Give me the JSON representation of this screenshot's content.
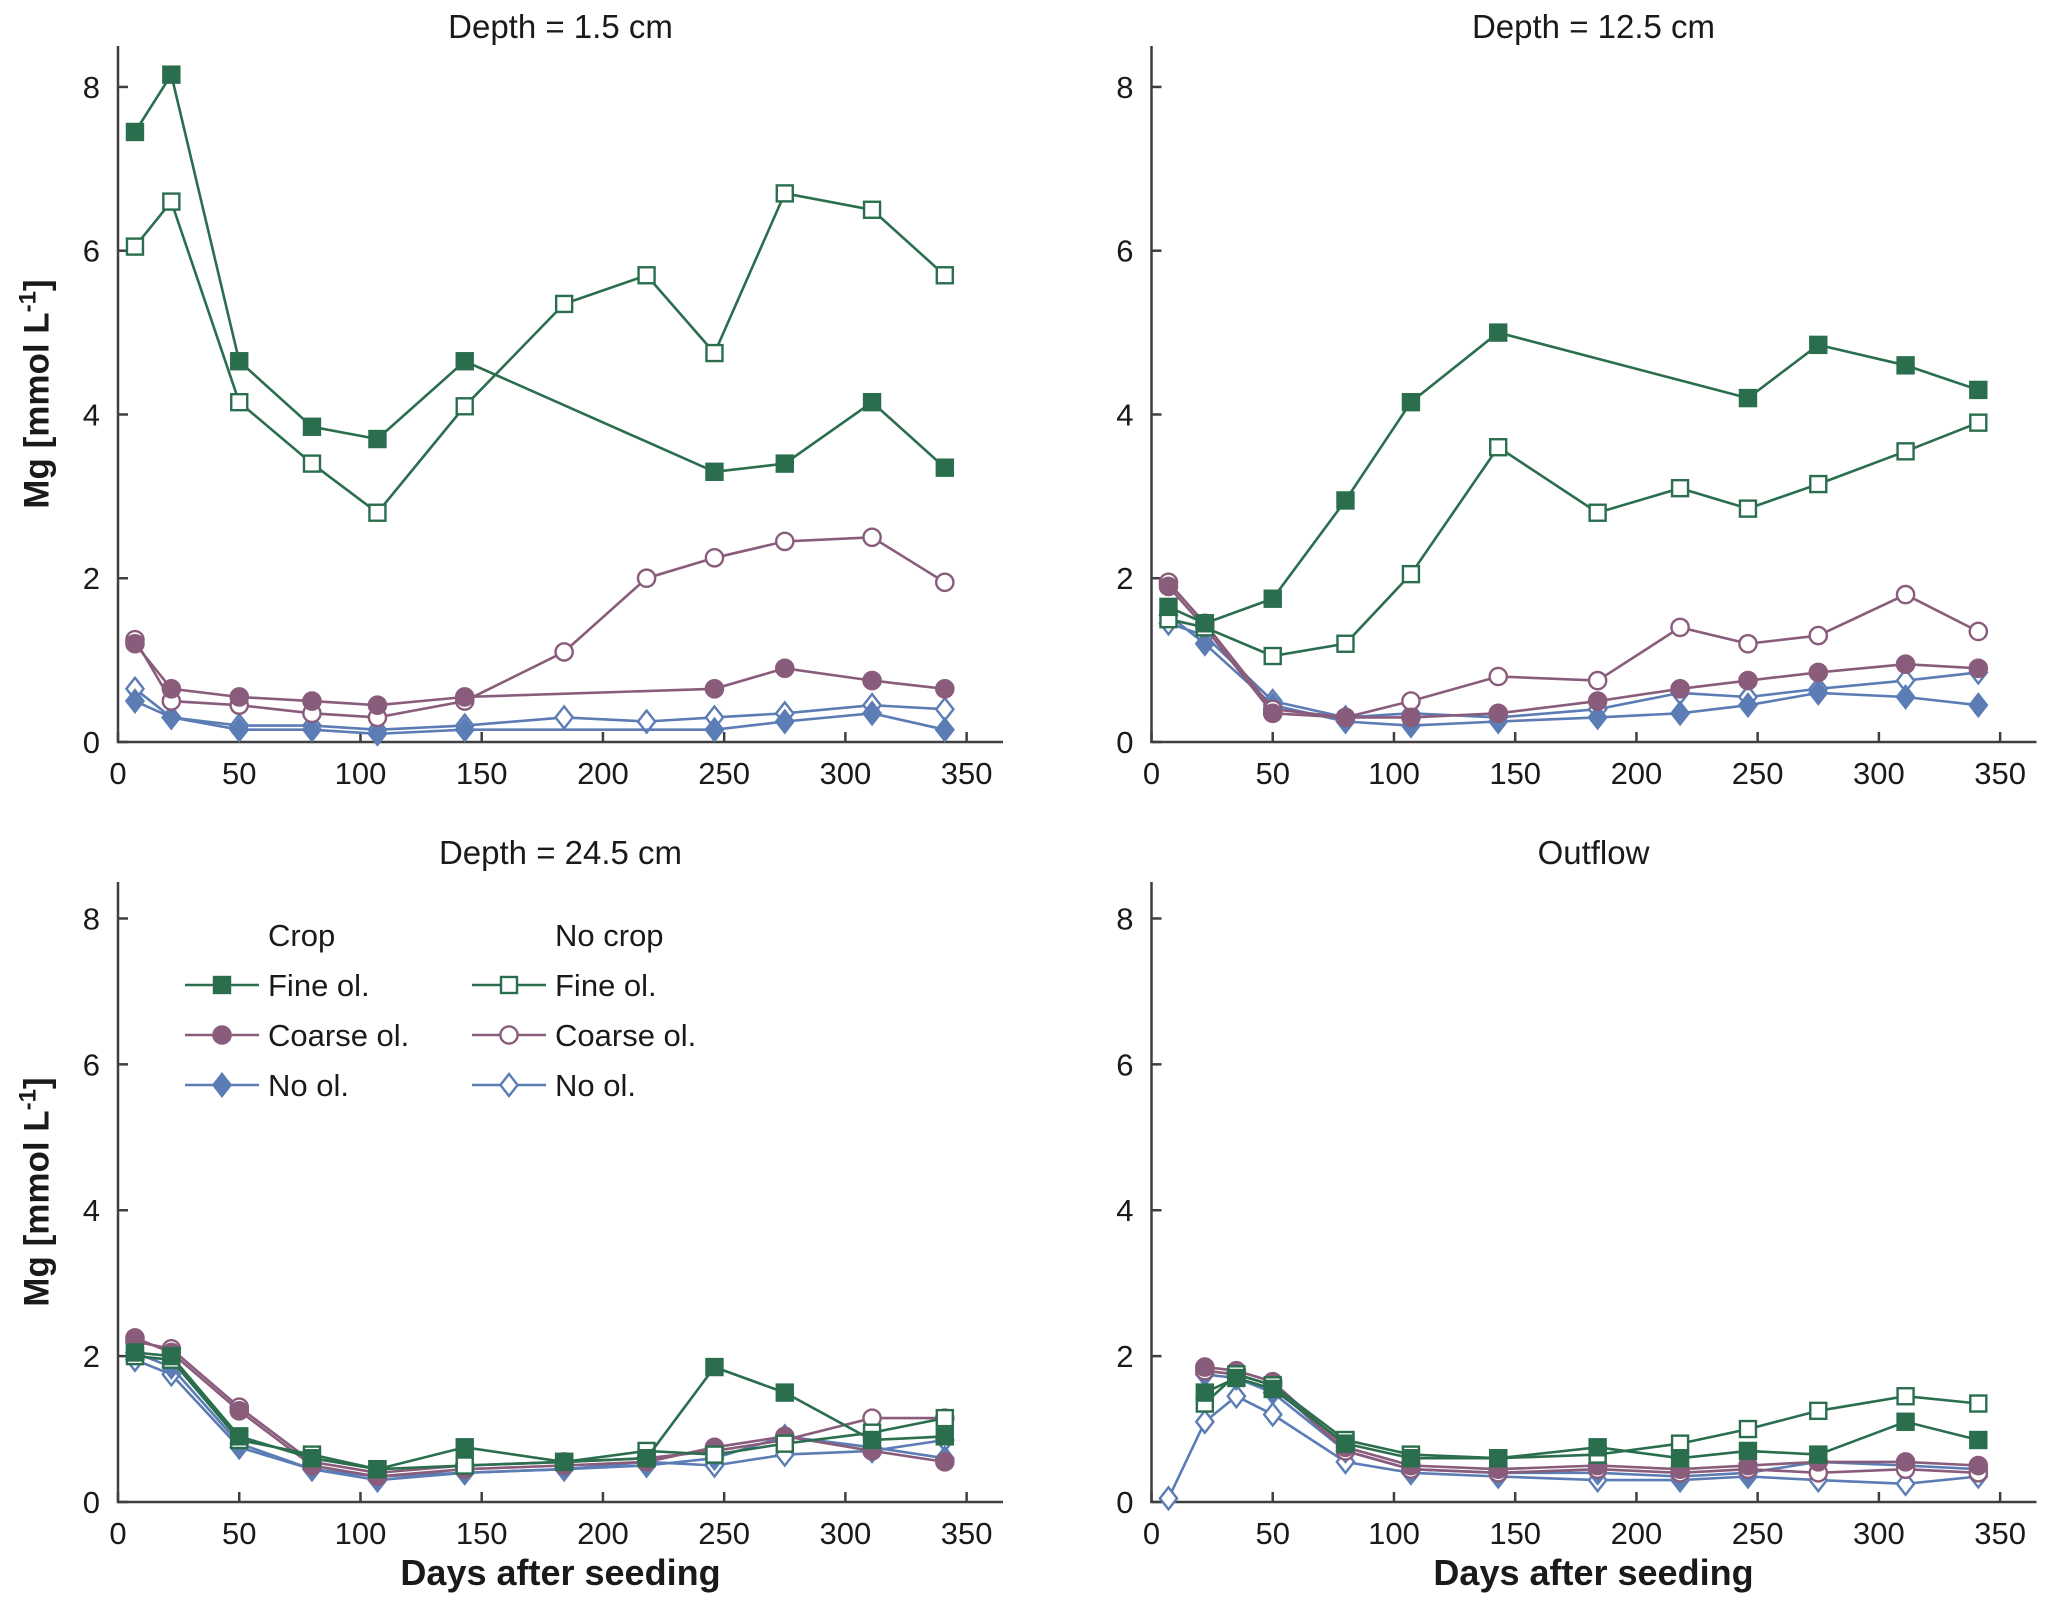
{
  "figure": {
    "xlabel": "Days after seeding",
    "ylabel": {
      "text": "Mg [mmol L",
      "sup": "-1",
      "close": "]"
    }
  },
  "palette": {
    "fine": "#2a6e4e",
    "coarse": "#8a5c7c",
    "no": "#5b7cb4",
    "axis": "#3f3f3f",
    "text": "#1a1a1a"
  },
  "axes": {
    "xlim": [
      0,
      365
    ],
    "ylim": [
      0,
      8.5
    ],
    "xticks": [
      0,
      50,
      100,
      150,
      200,
      250,
      300,
      350
    ],
    "yticks": [
      0,
      2,
      4,
      6,
      8
    ]
  },
  "legend": {
    "columns": [
      {
        "header": "Crop",
        "filled": true
      },
      {
        "header": "No crop",
        "filled": false
      }
    ],
    "rows": [
      {
        "label": "Fine ol.",
        "key": "fine",
        "marker": "square"
      },
      {
        "label": "Coarse ol.",
        "key": "coarse",
        "marker": "circle"
      },
      {
        "label": "No ol.",
        "key": "no",
        "marker": "diamond"
      }
    ]
  },
  "chart_data": [
    {
      "type": "line",
      "title": "Depth = 1.5 cm",
      "series": [
        {
          "name": "No crop - No ol.",
          "group": "nocrop",
          "olivine": "no",
          "marker": "diamond",
          "filled": false,
          "x": [
            7,
            22,
            50,
            80,
            107,
            143,
            184,
            218,
            246,
            275,
            311,
            341
          ],
          "y": [
            0.65,
            0.3,
            0.2,
            0.2,
            0.15,
            0.2,
            0.3,
            0.25,
            0.3,
            0.35,
            0.45,
            0.4
          ]
        },
        {
          "name": "Crop - No ol.",
          "group": "crop",
          "olivine": "no",
          "marker": "diamond",
          "filled": true,
          "x": [
            7,
            22,
            50,
            80,
            107,
            143,
            246,
            275,
            311,
            341
          ],
          "y": [
            0.5,
            0.3,
            0.15,
            0.15,
            0.1,
            0.15,
            0.15,
            0.25,
            0.35,
            0.15
          ]
        },
        {
          "name": "No crop - Coarse ol.",
          "group": "nocrop",
          "olivine": "coarse",
          "marker": "circle",
          "filled": false,
          "x": [
            7,
            22,
            50,
            80,
            107,
            143,
            184,
            218,
            246,
            275,
            311,
            341
          ],
          "y": [
            1.25,
            0.5,
            0.45,
            0.35,
            0.3,
            0.5,
            1.1,
            2.0,
            2.25,
            2.45,
            2.5,
            1.95
          ]
        },
        {
          "name": "Crop - Coarse ol.",
          "group": "crop",
          "olivine": "coarse",
          "marker": "circle",
          "filled": true,
          "x": [
            7,
            22,
            50,
            80,
            107,
            143,
            246,
            275,
            311,
            341
          ],
          "y": [
            1.2,
            0.65,
            0.55,
            0.5,
            0.45,
            0.55,
            0.65,
            0.9,
            0.75,
            0.65
          ]
        },
        {
          "name": "No crop - Fine ol.",
          "group": "nocrop",
          "olivine": "fine",
          "marker": "square",
          "filled": false,
          "x": [
            7,
            22,
            50,
            80,
            107,
            143,
            184,
            218,
            246,
            275,
            311,
            341
          ],
          "y": [
            6.05,
            6.6,
            4.15,
            3.4,
            2.8,
            4.1,
            5.35,
            5.7,
            4.75,
            6.7,
            6.5,
            5.7
          ]
        },
        {
          "name": "Crop - Fine ol.",
          "group": "crop",
          "olivine": "fine",
          "marker": "square",
          "filled": true,
          "x": [
            7,
            22,
            50,
            80,
            107,
            143,
            246,
            275,
            311,
            341
          ],
          "y": [
            7.45,
            8.15,
            4.65,
            3.85,
            3.7,
            4.65,
            3.3,
            3.4,
            4.15,
            3.35
          ]
        }
      ]
    },
    {
      "type": "line",
      "title": "Depth = 12.5 cm",
      "series": [
        {
          "name": "No crop - No ol.",
          "group": "nocrop",
          "olivine": "no",
          "marker": "diamond",
          "filled": false,
          "x": [
            7,
            22,
            50,
            80,
            107,
            143,
            184,
            218,
            246,
            275,
            311,
            341
          ],
          "y": [
            1.45,
            1.3,
            0.5,
            0.3,
            0.35,
            0.3,
            0.4,
            0.6,
            0.55,
            0.65,
            0.75,
            0.85
          ]
        },
        {
          "name": "Crop - No ol.",
          "group": "crop",
          "olivine": "no",
          "marker": "diamond",
          "filled": true,
          "x": [
            7,
            22,
            50,
            80,
            107,
            143,
            184,
            218,
            246,
            275,
            311,
            341
          ],
          "y": [
            1.55,
            1.2,
            0.45,
            0.25,
            0.2,
            0.25,
            0.3,
            0.35,
            0.45,
            0.6,
            0.55,
            0.45
          ]
        },
        {
          "name": "No crop - Coarse ol.",
          "group": "nocrop",
          "olivine": "coarse",
          "marker": "circle",
          "filled": false,
          "x": [
            7,
            22,
            50,
            80,
            107,
            143,
            184,
            218,
            246,
            275,
            311,
            341
          ],
          "y": [
            1.95,
            1.45,
            0.4,
            0.3,
            0.5,
            0.8,
            0.75,
            1.4,
            1.2,
            1.3,
            1.8,
            1.35
          ]
        },
        {
          "name": "Crop - Coarse ol.",
          "group": "crop",
          "olivine": "coarse",
          "marker": "circle",
          "filled": true,
          "x": [
            7,
            22,
            50,
            80,
            107,
            143,
            184,
            218,
            246,
            275,
            311,
            341
          ],
          "y": [
            1.9,
            1.4,
            0.35,
            0.3,
            0.3,
            0.35,
            0.5,
            0.65,
            0.75,
            0.85,
            0.95,
            0.9
          ]
        },
        {
          "name": "No crop - Fine ol.",
          "group": "nocrop",
          "olivine": "fine",
          "marker": "square",
          "filled": false,
          "x": [
            7,
            22,
            50,
            80,
            107,
            143,
            184,
            218,
            246,
            275,
            311,
            341
          ],
          "y": [
            1.5,
            1.4,
            1.05,
            1.2,
            2.05,
            3.6,
            2.8,
            3.1,
            2.85,
            3.15,
            3.55,
            3.9
          ]
        },
        {
          "name": "Crop - Fine ol.",
          "group": "crop",
          "olivine": "fine",
          "marker": "square",
          "filled": true,
          "x": [
            7,
            22,
            50,
            80,
            107,
            143,
            246,
            275,
            311,
            341
          ],
          "y": [
            1.65,
            1.45,
            1.75,
            2.95,
            4.15,
            5.0,
            4.2,
            4.85,
            4.6,
            4.3
          ]
        }
      ]
    },
    {
      "type": "line",
      "title": "Depth = 24.5 cm",
      "legend": true,
      "series": [
        {
          "name": "No crop - No ol.",
          "group": "nocrop",
          "olivine": "no",
          "marker": "diamond",
          "filled": false,
          "x": [
            7,
            22,
            50,
            80,
            107,
            143,
            184,
            218,
            246,
            275,
            311,
            341
          ],
          "y": [
            1.95,
            1.75,
            0.75,
            0.45,
            0.35,
            0.4,
            0.45,
            0.55,
            0.5,
            0.65,
            0.7,
            0.85
          ]
        },
        {
          "name": "Crop - No ol.",
          "group": "crop",
          "olivine": "no",
          "marker": "diamond",
          "filled": true,
          "x": [
            7,
            22,
            50,
            80,
            107,
            143,
            184,
            218,
            246,
            275,
            311,
            341
          ],
          "y": [
            2.05,
            1.85,
            0.8,
            0.45,
            0.3,
            0.4,
            0.45,
            0.5,
            0.6,
            0.9,
            0.75,
            0.6
          ]
        },
        {
          "name": "No crop - Coarse ol.",
          "group": "nocrop",
          "olivine": "coarse",
          "marker": "circle",
          "filled": false,
          "x": [
            7,
            22,
            50,
            80,
            107,
            143,
            184,
            218,
            246,
            275,
            311,
            341
          ],
          "y": [
            2.2,
            2.1,
            1.3,
            0.55,
            0.4,
            0.5,
            0.55,
            0.6,
            0.7,
            0.85,
            1.15,
            1.15
          ]
        },
        {
          "name": "Crop - Coarse ol.",
          "group": "crop",
          "olivine": "coarse",
          "marker": "circle",
          "filled": true,
          "x": [
            7,
            22,
            50,
            80,
            107,
            143,
            184,
            218,
            246,
            275,
            311,
            341
          ],
          "y": [
            2.25,
            2.05,
            1.25,
            0.5,
            0.35,
            0.45,
            0.5,
            0.55,
            0.75,
            0.9,
            0.7,
            0.55
          ]
        },
        {
          "name": "No crop - Fine ol.",
          "group": "nocrop",
          "olivine": "fine",
          "marker": "square",
          "filled": false,
          "x": [
            7,
            22,
            50,
            80,
            107,
            143,
            184,
            218,
            246,
            275,
            311,
            341
          ],
          "y": [
            2.0,
            1.95,
            0.85,
            0.65,
            0.45,
            0.5,
            0.55,
            0.7,
            0.65,
            0.8,
            0.95,
            1.15
          ]
        },
        {
          "name": "Crop - Fine ol.",
          "group": "crop",
          "olivine": "fine",
          "marker": "square",
          "filled": true,
          "x": [
            7,
            22,
            50,
            80,
            107,
            143,
            184,
            218,
            246,
            275,
            311,
            341
          ],
          "y": [
            2.05,
            2.0,
            0.9,
            0.6,
            0.45,
            0.75,
            0.55,
            0.6,
            1.85,
            1.5,
            0.85,
            0.9
          ]
        }
      ]
    },
    {
      "type": "line",
      "title": "Outflow",
      "series": [
        {
          "name": "No crop - No ol.",
          "group": "nocrop",
          "olivine": "no",
          "marker": "diamond",
          "filled": false,
          "x": [
            7,
            22,
            35,
            50,
            80,
            107,
            143,
            184,
            218,
            246,
            275,
            311,
            341
          ],
          "y": [
            0.05,
            1.1,
            1.45,
            1.2,
            0.55,
            0.4,
            0.35,
            0.3,
            0.3,
            0.35,
            0.3,
            0.25,
            0.35
          ]
        },
        {
          "name": "Crop - No ol.",
          "group": "crop",
          "olivine": "no",
          "marker": "diamond",
          "filled": true,
          "x": [
            22,
            35,
            50,
            80,
            107,
            143,
            184,
            218,
            246,
            275,
            311,
            341
          ],
          "y": [
            1.75,
            1.7,
            1.5,
            0.7,
            0.45,
            0.4,
            0.4,
            0.35,
            0.4,
            0.55,
            0.5,
            0.45
          ]
        },
        {
          "name": "No crop - Coarse ol.",
          "group": "nocrop",
          "olivine": "coarse",
          "marker": "circle",
          "filled": false,
          "x": [
            22,
            35,
            50,
            80,
            107,
            143,
            184,
            218,
            246,
            275,
            311,
            341
          ],
          "y": [
            1.8,
            1.75,
            1.6,
            0.7,
            0.45,
            0.4,
            0.45,
            0.4,
            0.45,
            0.4,
            0.45,
            0.4
          ]
        },
        {
          "name": "Crop - Coarse ol.",
          "group": "crop",
          "olivine": "coarse",
          "marker": "circle",
          "filled": true,
          "x": [
            22,
            35,
            50,
            80,
            107,
            143,
            184,
            218,
            246,
            275,
            311,
            341
          ],
          "y": [
            1.85,
            1.8,
            1.65,
            0.75,
            0.5,
            0.45,
            0.5,
            0.45,
            0.5,
            0.55,
            0.55,
            0.5
          ]
        },
        {
          "name": "No crop - Fine ol.",
          "group": "nocrop",
          "olivine": "fine",
          "marker": "square",
          "filled": false,
          "x": [
            22,
            35,
            50,
            80,
            107,
            143,
            184,
            218,
            246,
            275,
            311,
            341
          ],
          "y": [
            1.35,
            1.75,
            1.6,
            0.85,
            0.65,
            0.6,
            0.65,
            0.8,
            1.0,
            1.25,
            1.45,
            1.35
          ]
        },
        {
          "name": "Crop - Fine ol.",
          "group": "crop",
          "olivine": "fine",
          "marker": "square",
          "filled": true,
          "x": [
            22,
            35,
            50,
            80,
            107,
            143,
            184,
            218,
            246,
            275,
            311,
            341
          ],
          "y": [
            1.5,
            1.7,
            1.55,
            0.8,
            0.6,
            0.6,
            0.75,
            0.6,
            0.7,
            0.65,
            1.1,
            0.85
          ]
        }
      ]
    }
  ]
}
